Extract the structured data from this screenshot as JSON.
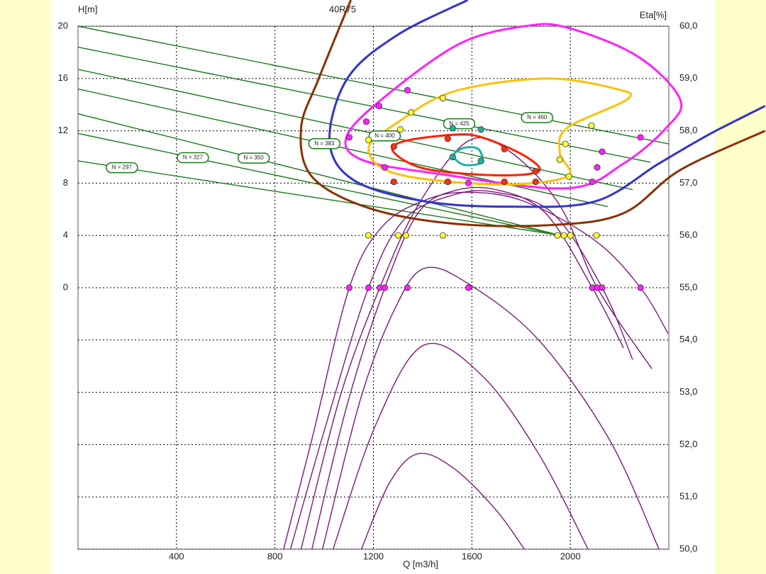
{
  "chart_data": {
    "type": "line",
    "title": "40R75",
    "xlabel": "Q [m3/h]",
    "ylabel": "H[m]",
    "y2label": "Eta[%]",
    "xlim": [
      0,
      2400
    ],
    "xticks": [
      400,
      800,
      1200,
      1600,
      2000
    ],
    "ylim": [
      -20,
      20
    ],
    "yticks": [
      0,
      4,
      8,
      12,
      16,
      20
    ],
    "y2lim": [
      50,
      60
    ],
    "y2ticks": [
      {
        "value": 50,
        "label": "50,0"
      },
      {
        "value": 51,
        "label": "51,0"
      },
      {
        "value": 52,
        "label": "52,0"
      },
      {
        "value": 53,
        "label": "53,0"
      },
      {
        "value": 54,
        "label": "54,0"
      },
      {
        "value": 55,
        "label": "55,0"
      },
      {
        "value": 56,
        "label": "56,0"
      },
      {
        "value": 57,
        "label": "57,0"
      },
      {
        "value": 58,
        "label": "58,0"
      },
      {
        "value": 59,
        "label": "59,0"
      },
      {
        "value": 60,
        "label": "60,0"
      }
    ],
    "grid": true,
    "series": [
      {
        "name": "N = 460",
        "color": "#1a7a1a",
        "x": [
          0,
          2400
        ],
        "values": [
          20,
          11.0
        ]
      },
      {
        "name": "N = 425",
        "color": "#1a7a1a",
        "x": [
          0,
          2325
        ],
        "values": [
          18.4,
          9.6
        ]
      },
      {
        "name": "N = 400",
        "color": "#1a7a1a",
        "x": [
          0,
          2253
        ],
        "values": [
          16.7,
          7.5
        ]
      },
      {
        "name": "N = 383",
        "color": "#1a7a1a",
        "x": [
          0,
          2152
        ],
        "values": [
          15.2,
          6.2
        ]
      },
      {
        "name": "N = 350",
        "color": "#1a7a1a",
        "x": [
          0,
          1960
        ],
        "values": [
          13.3,
          4.0
        ]
      },
      {
        "name": "N = 327",
        "color": "#1a7a1a",
        "x": [
          0,
          1960
        ],
        "values": [
          11.8,
          4.0
        ]
      },
      {
        "name": "N = 297",
        "color": "#1a7a1a",
        "x": [
          0,
          1960
        ],
        "values": [
          9.7,
          4.0
        ]
      },
      {
        "color": "#7a1a7a",
        "x": [
          835,
          950,
          1102,
          1237,
          1410,
          1583,
          1813,
          2101,
          2285,
          2397
        ],
        "values": [
          -20,
          -11.6,
          0,
          4.7,
          6.7,
          7.3,
          6.6,
          3.6,
          0,
          -3.5
        ]
      },
      {
        "color": "#7a1a7a",
        "x": [
          863,
          1007,
          1180,
          1324,
          1525,
          1698,
          1928,
          2129,
          2253
        ],
        "values": [
          -20,
          -10.5,
          0,
          5.2,
          7.1,
          7.3,
          5.7,
          0,
          -5.5
        ]
      },
      {
        "color": "#7a1a7a",
        "x": [
          906,
          1065,
          1226,
          1381,
          1583,
          1755,
          1957,
          2109,
          2331
        ],
        "values": [
          -20,
          -8.3,
          0,
          6.3,
          11.2,
          10.4,
          6.3,
          0,
          -6.2
        ]
      },
      {
        "color": "#7a1a7a",
        "x": [
          950,
          1094,
          1246,
          1381,
          1525,
          1698,
          1899,
          2089,
          2216
        ],
        "values": [
          -20,
          -8.9,
          0,
          5.7,
          7.4,
          7.5,
          5.7,
          0,
          -4.6
        ]
      },
      {
        "color": "#7a1a7a",
        "x": [
          993,
          1151,
          1295,
          1410,
          1586,
          1871,
          2158,
          2360
        ],
        "values": [
          -20,
          -8.3,
          -1.3,
          1.5,
          0.3,
          -4.0,
          -11.6,
          -20
        ]
      },
      {
        "color": "#7a1a7a",
        "x": [
          1036,
          1209,
          1404,
          1640,
          1871,
          2072
        ],
        "values": [
          -20,
          -10.5,
          -4.4,
          -6.7,
          -12.7,
          -20
        ]
      },
      {
        "color": "#7a1a7a",
        "x": [
          1151,
          1266,
          1381,
          1525,
          1698,
          1813
        ],
        "values": [
          -20,
          -14.9,
          -12.7,
          -13.8,
          -17.0,
          -20
        ]
      },
      {
        "color": "#8b3000",
        "x": [
          1108,
          978,
          906,
          950,
          1180,
          1525,
          1928,
          2216,
          2446,
          2791
        ],
        "values": [
          22.0,
          16.0,
          12.2,
          8.5,
          6.1,
          4.9,
          4.8,
          5.7,
          9.0,
          12.0
        ]
      },
      {
        "color": "#3333cc",
        "x": [
          1583,
          1295,
          1094,
          1022,
          1122,
          1410,
          1755,
          2101,
          2360,
          2561,
          2791
        ],
        "values": [
          22.0,
          19.3,
          16.0,
          11.2,
          8.2,
          6.6,
          6.2,
          6.6,
          9.5,
          11.7,
          13.9
        ]
      },
      {
        "color": "#ff22ff",
        "closed": true,
        "x": [
          1813,
          1554,
          1266,
          1094,
          1151,
          1468,
          1986,
          2216,
          2388,
          2446,
          2273,
          1986
        ],
        "values": [
          20.0,
          18.7,
          14.9,
          11.7,
          9.8,
          8.7,
          7.6,
          9.5,
          12.2,
          14.4,
          17.7,
          19.9
        ]
      },
      {
        "color": "#ffc000",
        "closed": true,
        "x": [
          1899,
          1525,
          1295,
          1180,
          1295,
          1698,
          1986,
          1957,
          1986,
          2230,
          2187
        ],
        "values": [
          16.0,
          15.0,
          12.6,
          10.6,
          8.7,
          7.9,
          8.5,
          10.3,
          12.2,
          14.4,
          15.2
        ]
      },
      {
        "color": "#ff2000",
        "closed": true,
        "x": [
          1525,
          1324,
          1281,
          1410,
          1698,
          1871,
          1813,
          1640
        ],
        "values": [
          11.7,
          11.2,
          10.4,
          9.1,
          8.6,
          8.9,
          10.1,
          11.5
        ]
      },
      {
        "color": "#20b0a0",
        "closed": true,
        "x": [
          1568,
          1525,
          1568,
          1640,
          1626
        ],
        "values": [
          10.7,
          10.1,
          9.4,
          9.6,
          10.6
        ]
      }
    ],
    "markers": [
      {
        "color": "#ff22ff",
        "x": [
          1338,
          1223,
          1171,
          1102,
          1246,
          1586,
          2089,
          2109,
          2129,
          2285,
          1102,
          1180,
          1226,
          1246,
          1338,
          1586,
          2089,
          2109,
          2129,
          2285
        ],
        "values": [
          15.1,
          13.9,
          12.7,
          11.5,
          9.2,
          8.0,
          8.1,
          9.2,
          10.4,
          11.5,
          0,
          0,
          0,
          0,
          0,
          0,
          0,
          0,
          0,
          0
        ]
      },
      {
        "color": "#ffff33",
        "x": [
          1482,
          1353,
          1309,
          1180,
          2086,
          1980,
          1957,
          1994,
          1180,
          1301,
          1332,
          1482,
          1948,
          1974,
          2000,
          2106
        ],
        "values": [
          14.5,
          13.4,
          12.1,
          11.3,
          12.4,
          11.0,
          9.8,
          8.5,
          4,
          4,
          4,
          4,
          4,
          4,
          4,
          4
        ]
      },
      {
        "color": "#ff3010",
        "x": [
          1283,
          1502,
          1732,
          1859,
          1283,
          1502,
          1732,
          1859
        ],
        "values": [
          10.8,
          11.4,
          10.6,
          8.9,
          8.1,
          8.1,
          8.1,
          8.1
        ]
      },
      {
        "color": "#20b0a0",
        "x": [
          1522,
          1637,
          1522,
          1637
        ],
        "values": [
          12.2,
          12.1,
          10.0,
          9.7
        ]
      }
    ]
  }
}
